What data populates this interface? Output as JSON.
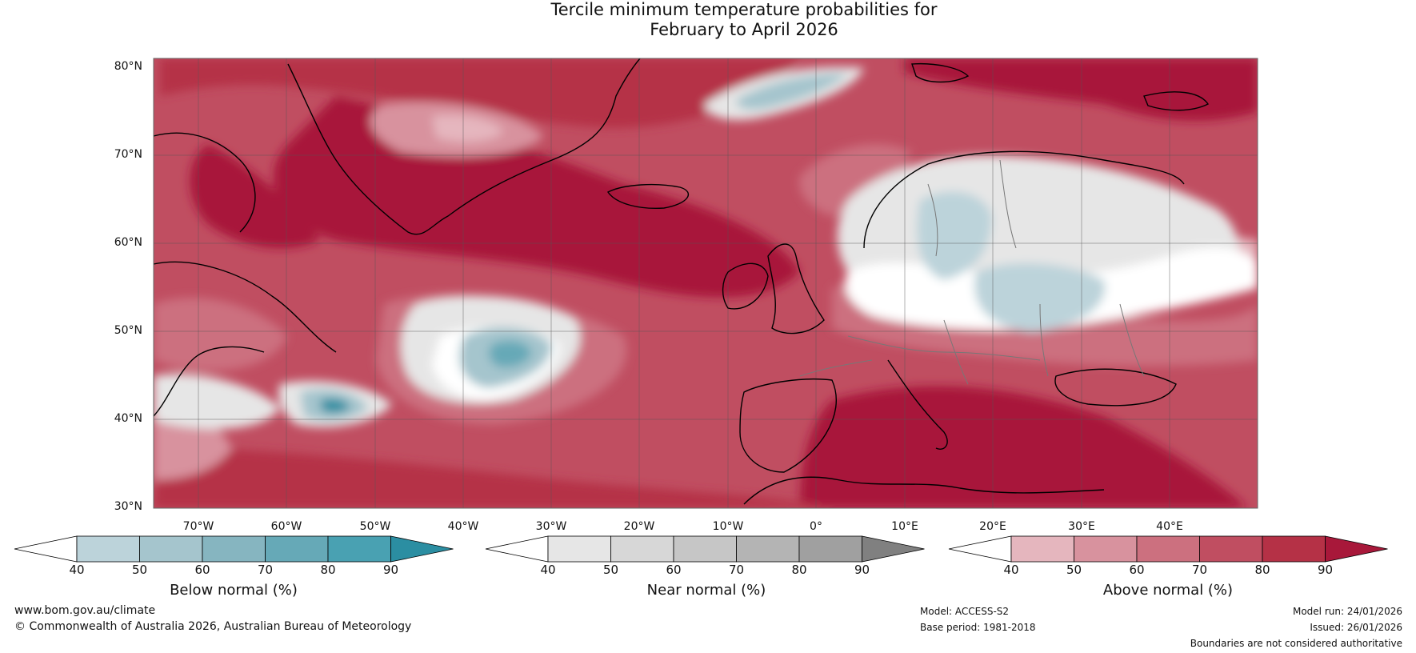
{
  "title_line1": "Tercile minimum temperature probabilities for",
  "title_line2": "February to April 2026",
  "lat_labels": [
    "80°N",
    "70°N",
    "60°N",
    "50°N",
    "40°N",
    "30°N"
  ],
  "lon_labels": [
    "70°W",
    "60°W",
    "50°W",
    "40°W",
    "30°W",
    "20°W",
    "10°W",
    "0°",
    "10°E",
    "20°E",
    "30°E",
    "40°E"
  ],
  "colorbars": [
    {
      "title": "Below normal (%)",
      "ticks": [
        "40",
        "50",
        "60",
        "70",
        "80",
        "90"
      ],
      "colors": [
        "#ffffff",
        "#bcd3da",
        "#a5c5cd",
        "#86b5c0",
        "#66a9b7",
        "#49a1b2",
        "#2b8ea2"
      ]
    },
    {
      "title": "Near normal (%)",
      "ticks": [
        "40",
        "50",
        "60",
        "70",
        "80",
        "90"
      ],
      "colors": [
        "#ffffff",
        "#e6e6e6",
        "#d7d7d7",
        "#c6c6c6",
        "#b4b4b4",
        "#a0a0a0",
        "#808080"
      ]
    },
    {
      "title": "Above normal (%)",
      "ticks": [
        "40",
        "50",
        "60",
        "70",
        "80",
        "90"
      ],
      "colors": [
        "#ffffff",
        "#e5b6be",
        "#d8929e",
        "#cc707f",
        "#c04e61",
        "#b53146",
        "#a8183a"
      ]
    }
  ],
  "footer": {
    "website": "www.bom.gov.au/climate",
    "copyright": "© Commonwealth of Australia 2026, Australian Bureau of Meteorology",
    "model": "Model: ACCESS-S2",
    "base_period": "Base period: 1981-2018",
    "model_run": "Model run: 24/01/2026",
    "issued": "Issued: 26/01/2026",
    "disclaimer": "Boundaries are not considered authoritative"
  },
  "colors": {
    "above_80": "#b53146",
    "above_90": "#a8183a",
    "above_70": "#c04e61",
    "above_60": "#cc707f",
    "above_50": "#d8929e",
    "above_40": "#e5b6be",
    "near_40": "#e6e6e6",
    "near_50": "#d7d7d7",
    "below_40": "#bcd3da",
    "below_50": "#a5c5cd",
    "below_70": "#66a9b7",
    "below_90": "#2b8ea2"
  }
}
